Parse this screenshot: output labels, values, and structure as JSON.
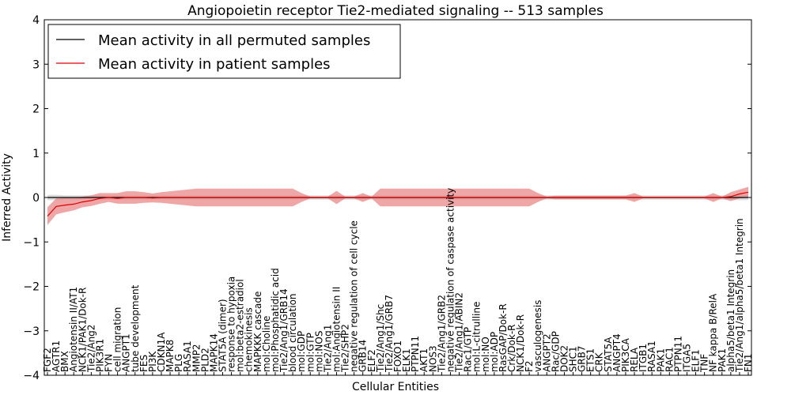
{
  "chart_data": {
    "type": "line",
    "title": "Angiopoietin receptor Tie2-mediated signaling -- 513 samples",
    "xlabel": "Cellular Entities",
    "ylabel": "Inferred Activity",
    "ylim": [
      -4,
      4
    ],
    "yticks": [
      "4",
      "3",
      "2",
      "1",
      "0",
      "−1",
      "−2",
      "−3",
      "−4"
    ],
    "legend": {
      "placement": "top-left",
      "entries": [
        {
          "label": "Mean activity in all permuted samples",
          "color": "#000000"
        },
        {
          "label": "Mean activity in patient samples",
          "color": "#dd0000"
        }
      ]
    },
    "colors": {
      "patient_band": "#e88080",
      "permuted_band": "#cfcfcf"
    },
    "entities": [
      "FGF2",
      "AGTR1",
      "BMX",
      "Angiotensin II/AT1",
      "NCK1/PAK1/Dok-R",
      "Tie2/Ang2",
      "PIK3R1",
      "FYN",
      "cell migration",
      "ANGPT1",
      "tube development",
      "FES",
      "PI3K",
      "CDKN1A",
      "MAPK8",
      "PLG",
      "RASA1",
      "MMP2",
      "PLD2",
      "MAPK14",
      "STAT5A (dimer)",
      "response to hypoxia",
      "mol:beta2-estradiol",
      "chemokinesis",
      "MAPKKK cascade",
      "mol:Choline",
      "mol:Phosphatidic acid",
      "Tie2/Ang1/GRB14",
      "blood circulation",
      "mol:GDP",
      "mol:GTP",
      "mol:NOS",
      "Tie2/Ang1",
      "mol:Angiotensin II",
      "Tie2/SHP2",
      "negative regulation of cell cycle",
      "GRB14",
      "ELF2",
      "Tie2/Ang1/Shc",
      "Tie2/Ang1/GRB7",
      "FOXO1",
      "ELK1",
      "PTPN11",
      "AKT1",
      "NOS3",
      "Tie2/Ang1/GRB2",
      "negative regulation of caspase activity",
      "Tie2/Ang1/ABIN2",
      "Rac1/GTP",
      "mol:L-citrulline",
      "mol:NO",
      "mol:ADP",
      "RasGAP/Dok-R",
      "Crk/Dok-R",
      "NCK1/Dok-R",
      "F2",
      "vasculogenesis",
      "ANGPT2",
      "Rac/GDP",
      "DOK2",
      "SHC1",
      "GRB7",
      "ETS1",
      "CRK",
      "STAT5A",
      "ANGPT4",
      "PIK3CA",
      "RELA",
      "ITGB1",
      "RASA1",
      "PAK1",
      "RAC1",
      "PTPN11",
      "ITGA5",
      "ELF1",
      "TNF",
      "NF kappa B/RelA",
      "PAK1",
      "alpha5/beta1 Integrin",
      "Tie2/Ang1/alpha5/beta1 Integrin",
      "FN1"
    ],
    "series": [
      {
        "name": "Mean activity in all permuted samples",
        "values": [
          0,
          0,
          0,
          0,
          0,
          0,
          0,
          0,
          0,
          0,
          0,
          0,
          0,
          0,
          0,
          0,
          0,
          0,
          0,
          0,
          0,
          0,
          0,
          0,
          0,
          0,
          0,
          0,
          0,
          0,
          0,
          0,
          0,
          0,
          0,
          0,
          0,
          0,
          0,
          0,
          0,
          0,
          0,
          0,
          0,
          0,
          0,
          0,
          0,
          0,
          0,
          0,
          0,
          0,
          0,
          0,
          0,
          0,
          0,
          0,
          0,
          0,
          0,
          0,
          0,
          0,
          0,
          0,
          0,
          0,
          0,
          0,
          0,
          0,
          0,
          0,
          0,
          0,
          0,
          0,
          0
        ]
      },
      {
        "name": "Mean activity in patient samples",
        "values": [
          -0.42,
          -0.2,
          -0.17,
          -0.15,
          -0.1,
          -0.07,
          -0.02,
          0.0,
          -0.02,
          0.0,
          0.0,
          0.0,
          -0.01,
          0.0,
          0.0,
          0.0,
          0.0,
          0.0,
          0.0,
          0.0,
          0.0,
          0.0,
          0.0,
          0.0,
          0.0,
          0.0,
          0.0,
          0.0,
          0.0,
          0.0,
          0.0,
          0.0,
          0.0,
          0.0,
          0.0,
          0.0,
          0.0,
          0.0,
          0.0,
          0.0,
          0.0,
          0.0,
          0.0,
          0.0,
          0.0,
          0.0,
          0.0,
          0.0,
          0.0,
          0.0,
          0.0,
          0.0,
          0.0,
          0.0,
          0.0,
          0.0,
          0.0,
          0.0,
          0.0,
          0.0,
          0.0,
          0.0,
          0.0,
          0.0,
          0.0,
          0.0,
          0.0,
          0.0,
          0.0,
          0.0,
          0.0,
          0.0,
          0.0,
          0.0,
          0.0,
          0.0,
          0.0,
          0.0,
          0.02,
          0.08,
          0.12
        ]
      }
    ],
    "patient_band_halfwidth": [
      0.2,
      0.18,
      0.16,
      0.14,
      0.12,
      0.12,
      0.12,
      0.1,
      0.12,
      0.14,
      0.14,
      0.12,
      0.1,
      0.12,
      0.14,
      0.16,
      0.18,
      0.2,
      0.2,
      0.2,
      0.2,
      0.2,
      0.2,
      0.2,
      0.2,
      0.2,
      0.2,
      0.2,
      0.2,
      0.1,
      0.02,
      0.02,
      0.02,
      0.15,
      0.02,
      0.02,
      0.1,
      0.02,
      0.2,
      0.2,
      0.2,
      0.2,
      0.2,
      0.2,
      0.2,
      0.2,
      0.2,
      0.2,
      0.2,
      0.2,
      0.2,
      0.2,
      0.2,
      0.2,
      0.2,
      0.2,
      0.1,
      0.02,
      0.04,
      0.04,
      0.04,
      0.04,
      0.04,
      0.04,
      0.04,
      0.04,
      0.04,
      0.1,
      0.02,
      0.02,
      0.02,
      0.02,
      0.02,
      0.02,
      0.02,
      0.02,
      0.1,
      0.02,
      0.1,
      0.1,
      0.12
    ],
    "permuted_band_halfwidth": [
      0.06,
      0.06,
      0.05,
      0.05,
      0.05,
      0.05,
      0.05,
      0.05,
      0.05,
      0.05,
      0.05,
      0.05,
      0.05,
      0.05,
      0.05,
      0.05,
      0.05,
      0.05,
      0.05,
      0.05,
      0.05,
      0.05,
      0.05,
      0.05,
      0.05,
      0.05,
      0.05,
      0.05,
      0.05,
      0.05,
      0.05,
      0.05,
      0.05,
      0.05,
      0.05,
      0.05,
      0.05,
      0.05,
      0.05,
      0.05,
      0.05,
      0.05,
      0.05,
      0.05,
      0.05,
      0.05,
      0.05,
      0.05,
      0.05,
      0.05,
      0.05,
      0.05,
      0.05,
      0.05,
      0.05,
      0.05,
      0.05,
      0.05,
      0.05,
      0.05,
      0.05,
      0.05,
      0.05,
      0.05,
      0.05,
      0.05,
      0.05,
      0.05,
      0.05,
      0.05,
      0.05,
      0.05,
      0.05,
      0.05,
      0.05,
      0.05,
      0.05,
      0.05,
      0.06,
      0.06,
      0.06
    ]
  }
}
